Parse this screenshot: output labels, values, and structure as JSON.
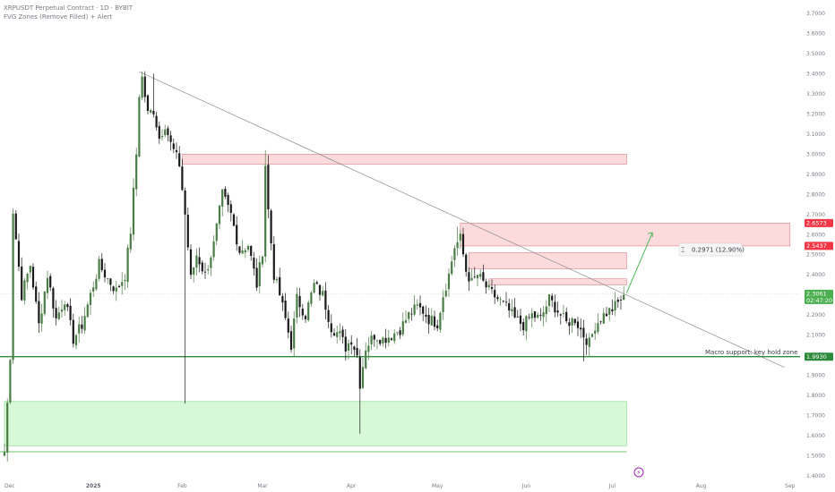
{
  "header": {
    "title": "XRPUSDT Perpetual Contract · 1D · BYBIT",
    "indicator": "FVG Zones (Remove Filled) + Alert"
  },
  "chart_data": {
    "type": "candlestick",
    "symbol": "XRPUSDT",
    "timeframe": "1D",
    "y_ticks": [
      "3.7000",
      "3.6000",
      "3.5000",
      "3.4000",
      "3.3000",
      "3.2000",
      "3.1000",
      "3.0000",
      "2.9000",
      "2.8000",
      "2.7000",
      "2.6000",
      "2.5000",
      "2.4000",
      "2.3000",
      "2.2000",
      "2.1000",
      "2.0000",
      "1.9000",
      "1.8000",
      "1.7000",
      "1.6000",
      "1.5000",
      "1.4000"
    ],
    "ylim": [
      1.4,
      3.74
    ],
    "x_ticks": [
      {
        "label": "Dec",
        "index": 0,
        "bold": false
      },
      {
        "label": "2025",
        "index": 31,
        "bold": true
      },
      {
        "label": "Feb",
        "index": 62,
        "bold": false
      },
      {
        "label": "Mar",
        "index": 90,
        "bold": false
      },
      {
        "label": "Apr",
        "index": 121,
        "bold": false
      },
      {
        "label": "May",
        "index": 151,
        "bold": false
      },
      {
        "label": "Jun",
        "index": 182,
        "bold": false
      },
      {
        "label": "Jul",
        "index": 212,
        "bold": false
      },
      {
        "label": "Aug",
        "index": 243,
        "bold": false
      },
      {
        "label": "Sep",
        "index": 274,
        "bold": false
      }
    ],
    "candle_colors": {
      "up": "#4a7d45",
      "down": "#1a1a1a"
    },
    "waypoints": [
      [
        0,
        1.52
      ],
      [
        2,
        2.0
      ],
      [
        3,
        2.72
      ],
      [
        6,
        2.3
      ],
      [
        9,
        2.45
      ],
      [
        12,
        2.15
      ],
      [
        15,
        2.4
      ],
      [
        18,
        2.18
      ],
      [
        21,
        2.28
      ],
      [
        24,
        2.08
      ],
      [
        27,
        2.15
      ],
      [
        30,
        2.3
      ],
      [
        33,
        2.45
      ],
      [
        36,
        2.38
      ],
      [
        39,
        2.32
      ],
      [
        42,
        2.4
      ],
      [
        44,
        2.62
      ],
      [
        46,
        3.0
      ],
      [
        47,
        3.3
      ],
      [
        48,
        3.38
      ],
      [
        50,
        3.2
      ],
      [
        52,
        3.22
      ],
      [
        54,
        3.08
      ],
      [
        56,
        3.15
      ],
      [
        58,
        3.05
      ],
      [
        61,
        2.95
      ],
      [
        63,
        2.7
      ],
      [
        65,
        2.38
      ],
      [
        67,
        2.5
      ],
      [
        70,
        2.4
      ],
      [
        73,
        2.55
      ],
      [
        76,
        2.8
      ],
      [
        79,
        2.7
      ],
      [
        82,
        2.52
      ],
      [
        85,
        2.55
      ],
      [
        88,
        2.35
      ],
      [
        90,
        2.52
      ],
      [
        91,
        2.95
      ],
      [
        92,
        2.72
      ],
      [
        94,
        2.4
      ],
      [
        96,
        2.3
      ],
      [
        98,
        2.18
      ],
      [
        100,
        2.05
      ],
      [
        102,
        2.28
      ],
      [
        105,
        2.2
      ],
      [
        108,
        2.35
      ],
      [
        111,
        2.3
      ],
      [
        114,
        2.14
      ],
      [
        117,
        2.1
      ],
      [
        119,
        2.04
      ],
      [
        121,
        2.08
      ],
      [
        123,
        2.0
      ],
      [
        124,
        1.86
      ],
      [
        126,
        2.04
      ],
      [
        129,
        2.1
      ],
      [
        132,
        2.08
      ],
      [
        135,
        2.1
      ],
      [
        138,
        2.13
      ],
      [
        141,
        2.2
      ],
      [
        144,
        2.24
      ],
      [
        146,
        2.22
      ],
      [
        148,
        2.18
      ],
      [
        151,
        2.16
      ],
      [
        153,
        2.3
      ],
      [
        155,
        2.4
      ],
      [
        157,
        2.54
      ],
      [
        159,
        2.58
      ],
      [
        161,
        2.42
      ],
      [
        163,
        2.36
      ],
      [
        165,
        2.4
      ],
      [
        167,
        2.36
      ],
      [
        169,
        2.32
      ],
      [
        172,
        2.28
      ],
      [
        175,
        2.24
      ],
      [
        178,
        2.18
      ],
      [
        181,
        2.15
      ],
      [
        184,
        2.2
      ],
      [
        187,
        2.18
      ],
      [
        190,
        2.28
      ],
      [
        193,
        2.22
      ],
      [
        196,
        2.16
      ],
      [
        199,
        2.18
      ],
      [
        202,
        2.1
      ],
      [
        204,
        2.06
      ],
      [
        206,
        2.15
      ],
      [
        209,
        2.2
      ],
      [
        212,
        2.23
      ],
      [
        214,
        2.26
      ],
      [
        216,
        2.3
      ]
    ],
    "wick_overrides": [
      {
        "index": 0,
        "low": 1.52
      },
      {
        "index": 3,
        "high": 2.73
      },
      {
        "index": 48,
        "high": 3.41
      },
      {
        "index": 52,
        "high": 3.4
      },
      {
        "index": 63,
        "low": 1.76
      },
      {
        "index": 91,
        "high": 3.02
      },
      {
        "index": 124,
        "low": 1.61
      },
      {
        "index": 158,
        "high": 2.64
      },
      {
        "index": 202,
        "low": 1.97
      }
    ],
    "zones": [
      {
        "kind": "supply",
        "from_index": 62,
        "to_index": 217,
        "top": 3.0,
        "bottom": 2.95
      },
      {
        "kind": "supply",
        "from_index": 159,
        "to_index": 274,
        "top": 2.6573,
        "bottom": 2.5437
      },
      {
        "kind": "supply",
        "from_index": 162,
        "to_index": 217,
        "top": 2.51,
        "bottom": 2.43
      },
      {
        "kind": "supply",
        "from_index": 169,
        "to_index": 217,
        "top": 2.38,
        "bottom": 2.35
      },
      {
        "kind": "demand",
        "from_index": 0,
        "to_index": 217,
        "top": 1.77,
        "bottom": 1.55
      }
    ],
    "lines": [
      {
        "name": "descending-trendline",
        "from": [
          47,
          3.41
        ],
        "to": [
          272,
          1.94
        ]
      },
      {
        "name": "macro-support",
        "level": 1.993
      },
      {
        "name": "bottom-support",
        "level": 1.52
      },
      {
        "name": "current-price",
        "level": 2.3061
      }
    ],
    "projection": {
      "from": [
        217,
        2.31
      ],
      "to": [
        226,
        2.61
      ]
    },
    "price_tags": [
      {
        "value": "2.6573",
        "color": "#f23645"
      },
      {
        "value": "2.5437",
        "color": "#f23645"
      },
      {
        "value": "2.3061",
        "sub": "02:47:20",
        "color": "#4caf50"
      },
      {
        "value": "1.9930",
        "color": "#2e8b3d"
      }
    ],
    "annotations": {
      "measure": "0.2971 (12.90%)",
      "support_label": "Macro support: key hold zone"
    }
  }
}
